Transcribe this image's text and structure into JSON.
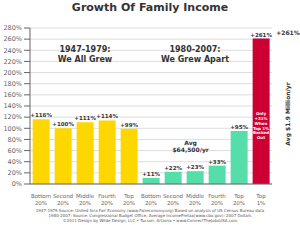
{
  "chart_data": {
    "type": "bar",
    "title": "Growth Of Family Income",
    "categories": [
      "Bottom\n20%",
      "Second\n20%",
      "Middle\n20%",
      "Fourth\n20%",
      "Top\n20%",
      "Bottom\n20%",
      "Second\n20%",
      "Middle\n20%",
      "Fourth\n20%",
      "Top\n20%",
      "Top\n1%"
    ],
    "values": [
      116,
      100,
      111,
      114,
      99,
      11,
      22,
      23,
      33,
      95,
      261
    ],
    "value_labels": [
      "+116%",
      "+100%",
      "+111%",
      "+114%",
      "+99%",
      "+11%",
      "+22%",
      "+23%",
      "+33%",
      "+95%",
      "+261%"
    ],
    "colors": [
      "#FFD700",
      "#FFD700",
      "#FFD700",
      "#FFD700",
      "#FFD700",
      "#55DDAA",
      "#55DDAA",
      "#55DDAA",
      "#55DDAA",
      "#55DDAA",
      "#CC0033"
    ],
    "data_labels": true,
    "ylim": [
      0,
      280
    ],
    "yticks": [
      {
        "value": 0,
        "label": "0%"
      },
      {
        "value": 20,
        "label": "20%"
      },
      {
        "value": 40,
        "label": "40%"
      },
      {
        "value": 60,
        "label": "60%"
      },
      {
        "value": 80,
        "label": "80%"
      },
      {
        "value": 100,
        "label": "100%"
      },
      {
        "value": 120,
        "label": "120%"
      },
      {
        "value": 140,
        "label": "140%"
      },
      {
        "value": 160,
        "label": "160%"
      },
      {
        "value": 180,
        "label": "180%"
      },
      {
        "value": 200,
        "label": "200%"
      },
      {
        "value": 220,
        "label": "220%"
      },
      {
        "value": 240,
        "label": "240%"
      },
      {
        "value": 260,
        "label": "260%"
      },
      {
        "value": 280,
        "label": "280%"
      }
    ],
    "grid": true,
    "annotations": [
      {
        "text": "1947-1979:\nWe All Grew"
      },
      {
        "text": "1980-2007:\nWe Grew Apart"
      },
      {
        "text": "Avg\n$64,500/yr"
      },
      {
        "text": "Only\n+31%\nWhen\nTop 1%\nBacked\nOut"
      },
      {
        "text": "Avg $1.9 Million/yr"
      },
      {
        "text": "+261%"
      }
    ],
    "footer": "1947-1979 Source: United fora Fair Economy (www.Faireconomy.org) Based on analysis of US Census Bureau data\n1980-2007: Source: Congressional Budget Office, Average IncomePretax(www.cbo.gov): 2007 Dollars\n©2011 Design by Wilde Design, LLC • Tucson, Arizona • www.ConnectTheJobsUSA.com"
  }
}
